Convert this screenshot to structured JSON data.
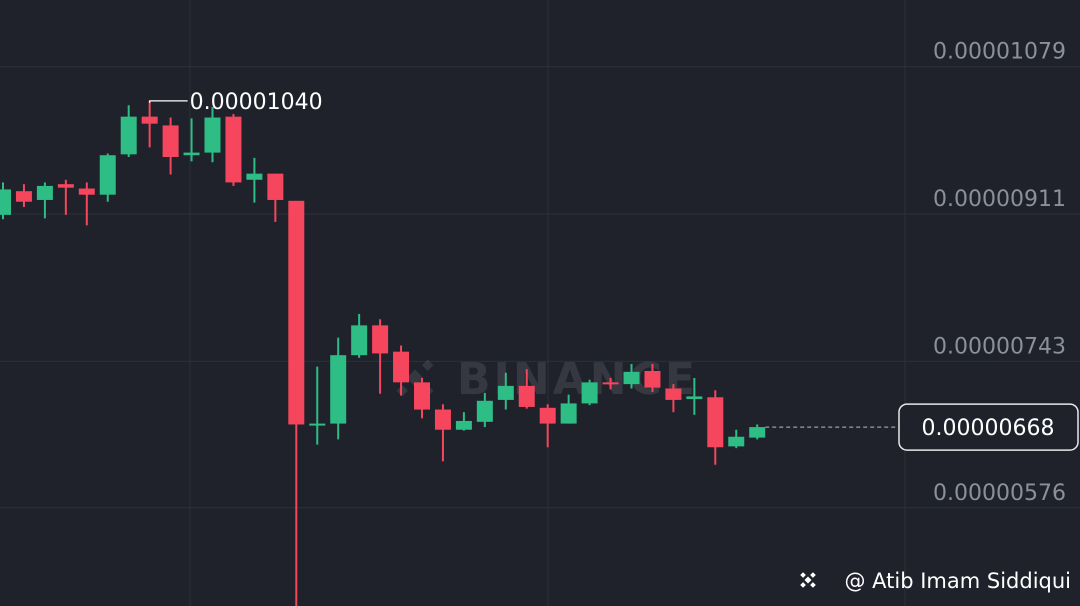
{
  "chart_data": {
    "type": "candlestick",
    "up_color": "#2ebd85",
    "down_color": "#f6465d",
    "grid": true,
    "ylim": [
      4.64e-06,
      1.155e-05
    ],
    "yticks": [
      1.079e-05,
      9.11e-06,
      7.43e-06,
      5.76e-06
    ],
    "open": [
      9.1e-06,
      9.37e-06,
      9.27e-06,
      9.45e-06,
      9.4e-06,
      9.33e-06,
      9.79e-06,
      1.022e-05,
      1.012e-05,
      9.78e-06,
      9.81e-06,
      1.022e-05,
      9.5e-06,
      9.57e-06,
      9.26e-06,
      6.7e-06,
      6.72e-06,
      7.5e-06,
      7.84e-06,
      7.54e-06,
      7.19e-06,
      6.88e-06,
      6.65e-06,
      6.74e-06,
      6.99e-06,
      7.15e-06,
      6.9e-06,
      6.72e-06,
      6.95e-06,
      7.19e-06,
      7.17e-06,
      7.32e-06,
      7.12e-06,
      7e-06,
      7.02e-06,
      6.46e-06,
      6.56e-06
    ],
    "high": [
      9.47e-06,
      9.45e-06,
      9.47e-06,
      9.5e-06,
      9.47e-06,
      9.8e-06,
      1.035e-05,
      1.04e-05,
      1.021e-05,
      1.02e-05,
      1.033e-05,
      1.025e-05,
      9.75e-06,
      9.57e-06,
      9.26e-06,
      7.37e-06,
      7.7e-06,
      7.97e-06,
      7.91e-06,
      7.61e-06,
      7.24e-06,
      6.94e-06,
      6.85e-06,
      7.07e-06,
      7.3e-06,
      7.34e-06,
      6.94e-06,
      7.05e-06,
      7.22e-06,
      7.24e-06,
      7.4e-06,
      7.4e-06,
      7.17e-06,
      7.24e-06,
      7.1e-06,
      6.65e-06,
      6.71e-06
    ],
    "low": [
      9.05e-06,
      9.19e-06,
      9.06e-06,
      9.1e-06,
      8.98e-06,
      9.25e-06,
      9.76e-06,
      9.87e-06,
      9.56e-06,
      9.71e-06,
      9.7e-06,
      9.43e-06,
      9.24e-06,
      9.02e-06,
      4.6e-06,
      6.48e-06,
      6.54e-06,
      7.47e-06,
      7.06e-06,
      7.04e-06,
      6.78e-06,
      6.29e-06,
      6.64e-06,
      6.68e-06,
      6.88e-06,
      6.89e-06,
      6.45e-06,
      6.72e-06,
      6.93e-06,
      7.11e-06,
      7.12e-06,
      7.08e-06,
      6.85e-06,
      6.82e-06,
      6.25e-06,
      6.44e-06,
      6.54e-06
    ],
    "close": [
      9.39e-06,
      9.25e-06,
      9.43e-06,
      9.41e-06,
      9.33e-06,
      9.78e-06,
      1.022e-05,
      1.014e-05,
      9.76e-06,
      9.81e-06,
      1.021e-05,
      9.47e-06,
      9.57e-06,
      9.27e-06,
      6.71e-06,
      6.72e-06,
      7.5e-06,
      7.84e-06,
      7.52e-06,
      7.19e-06,
      6.88e-06,
      6.65e-06,
      6.75e-06,
      6.98e-06,
      7.15e-06,
      6.91e-06,
      6.72e-06,
      6.95e-06,
      7.19e-06,
      7.17e-06,
      7.31e-06,
      7.13e-06,
      6.99e-06,
      7.03e-06,
      6.45e-06,
      6.57e-06,
      6.68e-06
    ],
    "high_label": {
      "value": 1.04e-05,
      "label": "0.00001040"
    },
    "last_price": 6.68e-06,
    "watermark": "BINANCE",
    "credit": "@ Atib Imam Siddiqui"
  }
}
